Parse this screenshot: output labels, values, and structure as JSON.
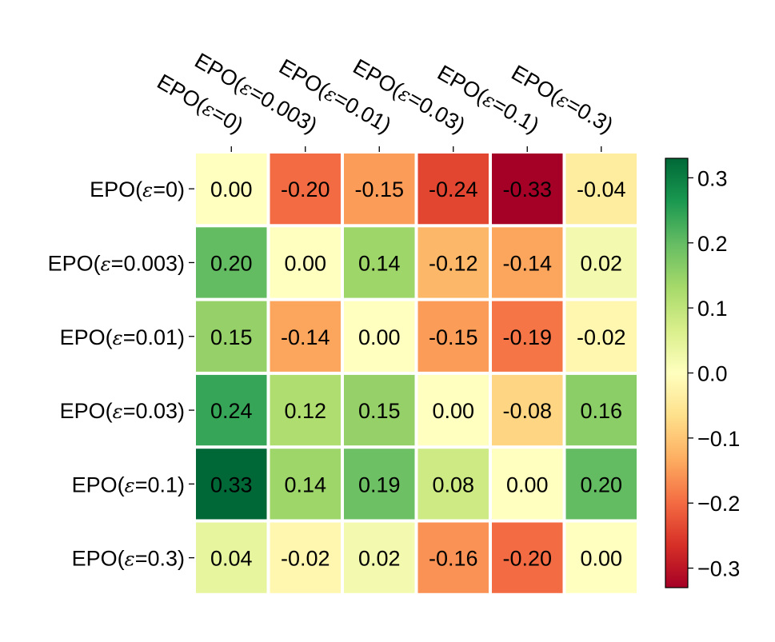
{
  "chart_data": {
    "type": "heatmap",
    "x_labels": [
      "EPO(ε=0)",
      "EPO(ε=0.003)",
      "EPO(ε=0.01)",
      "EPO(ε=0.03)",
      "EPO(ε=0.1)",
      "EPO(ε=0.3)"
    ],
    "y_labels": [
      "EPO(ε=0)",
      "EPO(ε=0.003)",
      "EPO(ε=0.01)",
      "EPO(ε=0.03)",
      "EPO(ε=0.1)",
      "EPO(ε=0.3)"
    ],
    "values": [
      [
        0.0,
        -0.2,
        -0.15,
        -0.24,
        -0.33,
        -0.04
      ],
      [
        0.2,
        0.0,
        0.14,
        -0.12,
        -0.14,
        0.02
      ],
      [
        0.15,
        -0.14,
        0.0,
        -0.15,
        -0.19,
        -0.02
      ],
      [
        0.24,
        0.12,
        0.15,
        0.0,
        -0.08,
        0.16
      ],
      [
        0.33,
        0.14,
        0.19,
        0.08,
        0.0,
        0.2
      ],
      [
        0.04,
        -0.02,
        0.02,
        -0.16,
        -0.2,
        0.0
      ]
    ],
    "cell_labels": [
      [
        "0.00",
        "-0.20",
        "-0.15",
        "-0.24",
        "-0.33",
        "-0.04"
      ],
      [
        "0.20",
        "0.00",
        "0.14",
        "-0.12",
        "-0.14",
        "0.02"
      ],
      [
        "0.15",
        "-0.14",
        "0.00",
        "-0.15",
        "-0.19",
        "-0.02"
      ],
      [
        "0.24",
        "0.12",
        "0.15",
        "0.00",
        "-0.08",
        "0.16"
      ],
      [
        "0.33",
        "0.14",
        "0.19",
        "0.08",
        "0.00",
        "0.20"
      ],
      [
        "0.04",
        "-0.02",
        "0.02",
        "-0.16",
        "-0.20",
        "0.00"
      ]
    ],
    "colormap": "RdYlGn",
    "vmin": -0.33,
    "vmax": 0.33,
    "colorbar": {
      "ticks": [
        0.3,
        0.2,
        0.1,
        0.0,
        -0.1,
        -0.2,
        -0.3
      ],
      "tick_labels": [
        "0.3",
        "0.2",
        "0.1",
        "0.0",
        "−0.1",
        "−0.2",
        "−0.3"
      ]
    },
    "colors": [
      "#a50026",
      "#d73027",
      "#f46d43",
      "#fdae61",
      "#fee08b",
      "#ffffbf",
      "#d9ef8b",
      "#a6d96a",
      "#66bd63",
      "#1a9850",
      "#006837"
    ],
    "cell_border_color": "#ffffff"
  }
}
